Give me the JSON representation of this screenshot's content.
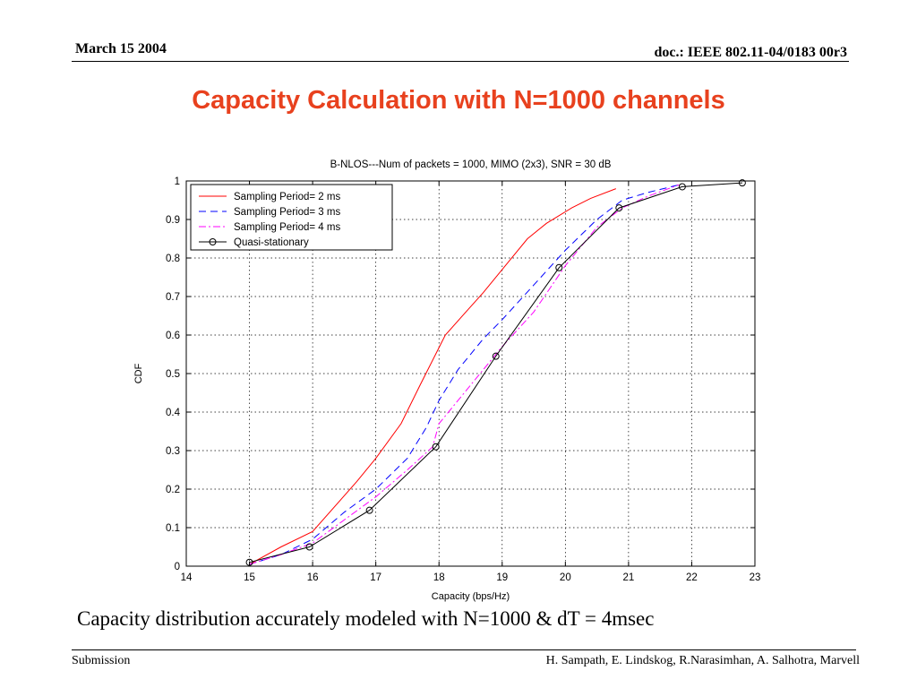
{
  "header": {
    "date": "March 15 2004",
    "doc": "doc.: IEEE 802.11-04/0183 00r3"
  },
  "slide_title": "Capacity Calculation with N=1000 channels",
  "caption": "Capacity distribution accurately modeled with N=1000 & dT = 4msec",
  "footer": {
    "left": "Submission",
    "right": "H. Sampath, E. Lindskog, R.Narasimhan,  A. Salhotra,  Marvell"
  },
  "colors": {
    "title": "#e8411e",
    "series_2ms": "#ff0000",
    "series_3ms": "#0000ff",
    "series_4ms": "#ff00ff",
    "series_qs": "#000000"
  },
  "chart_data": {
    "type": "line",
    "title": "B-NLOS---Num of packets = 1000, MIMO (2x3), SNR = 30 dB",
    "xlabel": "Capacity (bps/Hz)",
    "ylabel": "CDF",
    "xlim": [
      14,
      23
    ],
    "ylim": [
      0,
      1
    ],
    "xticks": [
      14,
      15,
      16,
      17,
      18,
      19,
      20,
      21,
      22,
      23
    ],
    "yticks": [
      0,
      0.1,
      0.2,
      0.3,
      0.4,
      0.5,
      0.6,
      0.7,
      0.8,
      0.9,
      1
    ],
    "grid": true,
    "legend": "top-left",
    "series": [
      {
        "name": "Sampling Period= 2 ms",
        "color": "#ff0000",
        "style": "solid",
        "x": [
          15.0,
          15.5,
          16.0,
          16.7,
          17.0,
          17.4,
          17.7,
          18.1,
          18.4,
          18.7,
          19.1,
          19.4,
          19.7,
          20.1,
          20.4,
          20.8
        ],
        "y": [
          0.005,
          0.05,
          0.09,
          0.22,
          0.28,
          0.37,
          0.47,
          0.6,
          0.655,
          0.71,
          0.79,
          0.85,
          0.89,
          0.93,
          0.955,
          0.98
        ]
      },
      {
        "name": "Sampling Period= 3 ms",
        "color": "#0000ff",
        "style": "dashed",
        "x": [
          15.0,
          15.5,
          16.0,
          16.5,
          17.0,
          17.5,
          17.8,
          18.0,
          18.3,
          18.7,
          19.0,
          19.5,
          20.0,
          20.5,
          20.9,
          21.3,
          21.8
        ],
        "y": [
          0.005,
          0.03,
          0.07,
          0.14,
          0.2,
          0.28,
          0.36,
          0.43,
          0.51,
          0.59,
          0.64,
          0.73,
          0.82,
          0.9,
          0.95,
          0.97,
          0.99
        ]
      },
      {
        "name": "Sampling Period= 4 ms",
        "color": "#ff00ff",
        "style": "dashdot",
        "x": [
          15.0,
          15.5,
          16.0,
          16.5,
          17.0,
          17.5,
          17.9,
          18.0,
          18.3,
          18.8,
          19.0,
          19.5,
          20.0,
          20.5,
          20.9,
          21.3,
          21.8
        ],
        "y": [
          0.005,
          0.03,
          0.06,
          0.12,
          0.18,
          0.25,
          0.31,
          0.37,
          0.43,
          0.53,
          0.57,
          0.66,
          0.78,
          0.88,
          0.93,
          0.96,
          0.99
        ]
      },
      {
        "name": "Quasi-stationary",
        "color": "#000000",
        "style": "solid-circle",
        "x": [
          15.0,
          15.95,
          16.9,
          17.95,
          18.9,
          19.9,
          20.85,
          21.85,
          22.8
        ],
        "y": [
          0.01,
          0.05,
          0.145,
          0.31,
          0.545,
          0.775,
          0.93,
          0.985,
          0.995
        ]
      }
    ]
  }
}
